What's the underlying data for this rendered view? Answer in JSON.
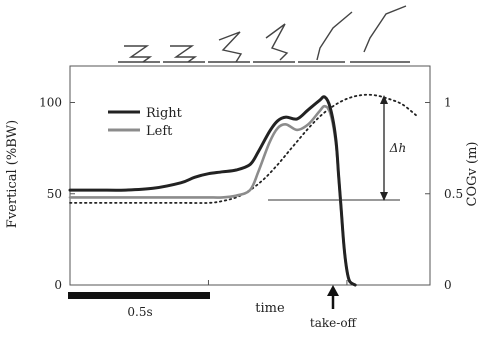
{
  "chart_data": {
    "type": "line",
    "y_left": {
      "label": "Fvertical (%BW)",
      "ticks": [
        0,
        50,
        100
      ],
      "ylim": [
        0,
        120
      ]
    },
    "y_right": {
      "label": "COGv (m)",
      "ticks": [
        "0",
        "0.5",
        "1"
      ],
      "ylim": [
        0,
        1.2
      ]
    },
    "x_axis": {
      "label": "time",
      "xlim": [
        0,
        1.3
      ]
    },
    "legend": {
      "position": "top-left",
      "entries": [
        "Right",
        "Left"
      ]
    },
    "series": [
      {
        "name": "Right",
        "color": "#222222",
        "x": [
          0.0,
          0.1,
          0.2,
          0.3,
          0.4,
          0.45,
          0.5,
          0.55,
          0.6,
          0.65,
          0.68,
          0.72,
          0.75,
          0.78,
          0.82,
          0.86,
          0.9,
          0.92,
          0.94,
          0.96,
          0.97,
          0.98,
          0.99,
          1.0,
          1.01,
          1.03
        ],
        "values": [
          52,
          52,
          52,
          53,
          56,
          59,
          61,
          62,
          63,
          66,
          73,
          84,
          90,
          92,
          91,
          96,
          101,
          103,
          97,
          80,
          60,
          40,
          20,
          8,
          2,
          0
        ]
      },
      {
        "name": "Left",
        "color": "#8c8c8c",
        "x": [
          0.0,
          0.1,
          0.2,
          0.3,
          0.4,
          0.45,
          0.5,
          0.55,
          0.6,
          0.65,
          0.68,
          0.72,
          0.75,
          0.78,
          0.82,
          0.86,
          0.9,
          0.92,
          0.94,
          0.96,
          0.97,
          0.98,
          0.99,
          1.0,
          1.01,
          1.03
        ],
        "values": [
          48,
          48,
          48,
          48,
          48,
          48,
          48,
          48,
          49,
          52,
          62,
          78,
          86,
          88,
          85,
          88,
          95,
          98,
          94,
          78,
          60,
          40,
          20,
          8,
          2,
          0
        ]
      },
      {
        "name": "COGv",
        "color": "#222222",
        "style": "dotted",
        "axis": "right",
        "x": [
          0.0,
          0.2,
          0.4,
          0.5,
          0.55,
          0.6,
          0.65,
          0.7,
          0.75,
          0.8,
          0.85,
          0.9,
          0.95,
          1.0,
          1.05,
          1.1,
          1.15,
          1.2,
          1.25
        ],
        "values": [
          0.45,
          0.45,
          0.45,
          0.45,
          0.46,
          0.48,
          0.52,
          0.58,
          0.66,
          0.75,
          0.84,
          0.92,
          0.98,
          1.02,
          1.04,
          1.04,
          1.02,
          0.99,
          0.93
        ]
      }
    ],
    "annotations": {
      "delta_h": "Δh",
      "scale_bar": "0.5s",
      "takeoff": "take-off"
    }
  }
}
